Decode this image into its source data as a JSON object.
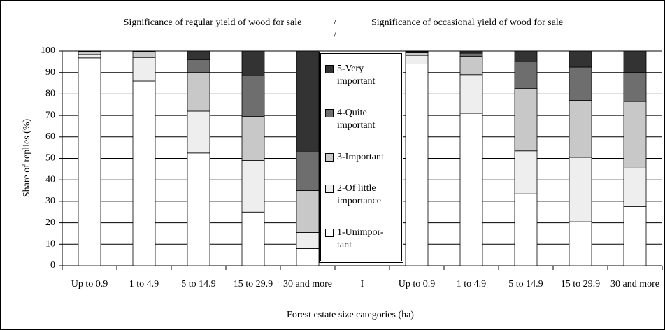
{
  "chart_data": {
    "type": "stacked_bar",
    "titles": [
      "Significance of regular yield of wood for sale",
      "Significance of occasional yield of wood for sale"
    ],
    "separator": "/",
    "y_label": "Share of replies (%)",
    "x_label": "Forest estate size categories  (ha)",
    "categories": [
      "Up to 0.9",
      "1 to 4.9",
      "5 to 14.9",
      "15 to 29.9",
      "30 and more",
      "I",
      "Up to 0.9",
      "1 to 4.9",
      "5 to 14.9",
      "15 to 29.9",
      "30 and more"
    ],
    "series": [
      {
        "name": "1-Unimpor-tant",
        "color": "#ffffff",
        "values": [
          96.8,
          86,
          52.5,
          25,
          8,
          null,
          94,
          71,
          33.5,
          20.5,
          27.5
        ]
      },
      {
        "name": "2-Of little importance",
        "color": "#eeeeee",
        "values": [
          1.6,
          11,
          19.5,
          24,
          7.5,
          null,
          4,
          18,
          20,
          30,
          18
        ]
      },
      {
        "name": "3-Important",
        "color": "#c8c8c8",
        "values": [
          1.1,
          2.5,
          18,
          20.5,
          19.5,
          null,
          1.2,
          8.5,
          29,
          26.5,
          31
        ]
      },
      {
        "name": "4-Quite important",
        "color": "#6e6e6e",
        "values": [
          0.3,
          0.3,
          6,
          19,
          18,
          null,
          0.5,
          1.5,
          12.5,
          15.5,
          13.5
        ]
      },
      {
        "name": "5-Very important",
        "color": "#333333",
        "values": [
          0.2,
          0.2,
          4,
          11.5,
          47,
          null,
          0.3,
          1,
          5,
          7.5,
          10
        ]
      }
    ],
    "ylim": [
      0,
      100
    ],
    "yticks": [
      0,
      10,
      20,
      30,
      40,
      50,
      60,
      70,
      80,
      90,
      100
    ],
    "grid": true
  }
}
